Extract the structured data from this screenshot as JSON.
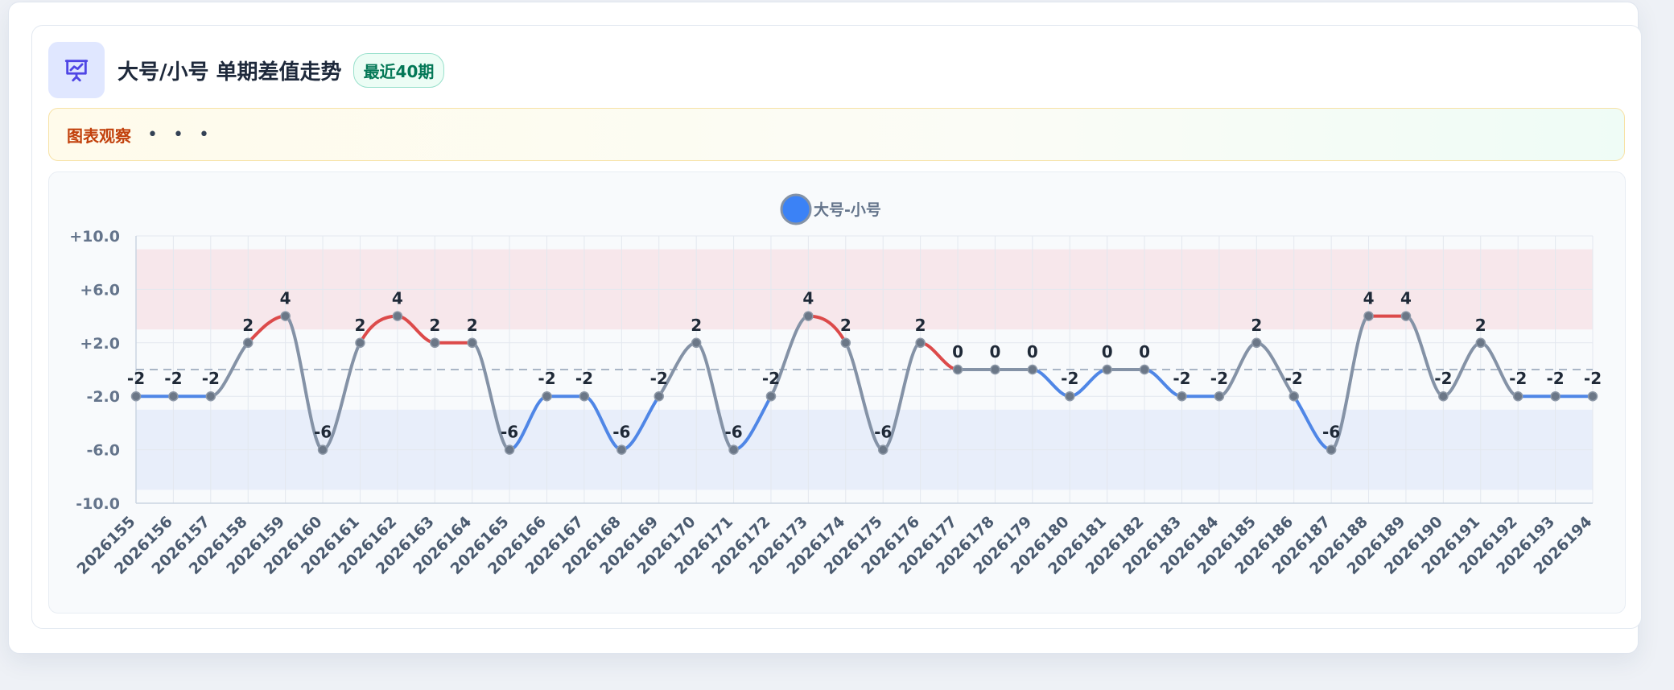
{
  "header": {
    "icon": "presentation-chart-icon",
    "title": "大号/小号 单期差值走势",
    "badge": "最近40期"
  },
  "observation": {
    "label": "图表观察",
    "dots": "• • •"
  },
  "colors": {
    "accent": "#4f46e5",
    "up": "#dc4a4a",
    "down": "#4f86e6",
    "neutral": "#8492a6",
    "legend": "#3b82f6",
    "upper_band": "#f7e7eb",
    "lower_band": "#e8eefa"
  },
  "chart_data": {
    "type": "line",
    "title": "",
    "xlabel": "",
    "ylabel": "",
    "legend": {
      "entries": [
        "大号-小号"
      ],
      "position": "top-center"
    },
    "categories": [
      "2026155",
      "2026156",
      "2026157",
      "2026158",
      "2026159",
      "2026160",
      "2026161",
      "2026162",
      "2026163",
      "2026164",
      "2026165",
      "2026166",
      "2026167",
      "2026168",
      "2026169",
      "2026170",
      "2026171",
      "2026172",
      "2026173",
      "2026174",
      "2026175",
      "2026176",
      "2026177",
      "2026178",
      "2026179",
      "2026180",
      "2026181",
      "2026182",
      "2026183",
      "2026184",
      "2026185",
      "2026186",
      "2026187",
      "2026188",
      "2026189",
      "2026190",
      "2026191",
      "2026192",
      "2026193",
      "2026194"
    ],
    "series": [
      {
        "name": "大号-小号",
        "values": [
          -2,
          -2,
          -2,
          2,
          4,
          -6,
          2,
          4,
          2,
          2,
          -6,
          -2,
          -2,
          -6,
          -2,
          2,
          -6,
          -2,
          4,
          2,
          -6,
          2,
          0,
          0,
          0,
          -2,
          0,
          0,
          -2,
          -2,
          2,
          -2,
          -6,
          4,
          4,
          -2,
          2,
          -2,
          -2,
          -2
        ]
      }
    ],
    "ylim": [
      -10,
      10
    ],
    "yticks": [
      10,
      6,
      2,
      -2,
      -6,
      -10
    ],
    "ytick_labels": [
      "+10.0",
      "+6.0",
      "+2.0",
      "-2.0",
      "-6.0",
      "-10.0"
    ],
    "reference_line": 0,
    "bands": [
      {
        "from": 3,
        "to": 9,
        "color": "#f7e7eb"
      },
      {
        "from": -9,
        "to": -3,
        "color": "#e8eefa"
      }
    ],
    "grid": true,
    "data_labels": true
  }
}
